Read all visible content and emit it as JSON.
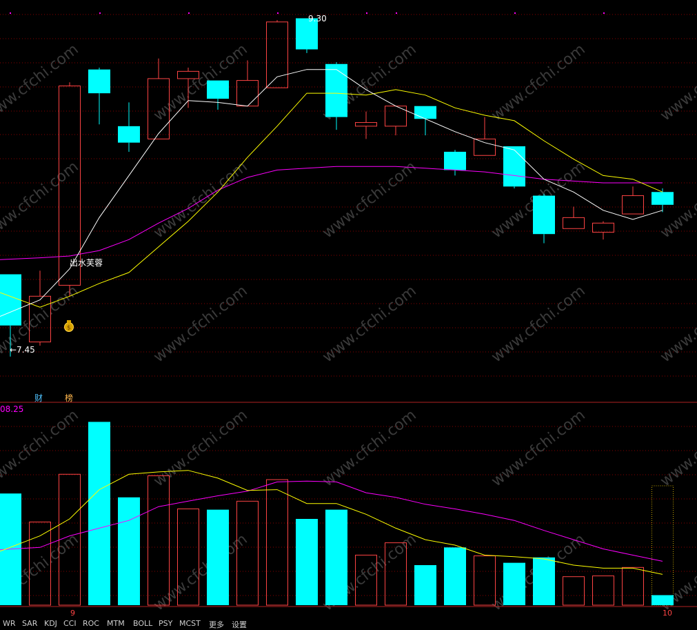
{
  "colors": {
    "up": "#ff4444",
    "down": "#00ffff",
    "ma_white": "#ffffff",
    "ma_yellow": "#ffff00",
    "ma_magenta": "#ff00ff",
    "grid": "#8b0000",
    "label_blue": "#4fc3ff",
    "label_orange": "#ffb74d"
  },
  "chart_data": [
    {
      "type": "candlestick",
      "panel": "price",
      "ylim": [
        7.2,
        9.4
      ],
      "candles": [
        {
          "o": 7.9,
          "h": 7.9,
          "l": 7.45,
          "c": 7.62
        },
        {
          "o": 7.53,
          "h": 7.92,
          "l": 7.51,
          "c": 7.78
        },
        {
          "o": 7.84,
          "h": 8.95,
          "l": 7.78,
          "c": 8.93
        },
        {
          "o": 9.02,
          "h": 9.03,
          "l": 8.72,
          "c": 8.89
        },
        {
          "o": 8.71,
          "h": 8.84,
          "l": 8.57,
          "c": 8.62
        },
        {
          "o": 8.64,
          "h": 9.08,
          "l": 8.64,
          "c": 8.97
        },
        {
          "o": 8.97,
          "h": 9.03,
          "l": 8.81,
          "c": 9.01
        },
        {
          "o": 8.96,
          "h": 8.96,
          "l": 8.8,
          "c": 8.86
        },
        {
          "o": 8.82,
          "h": 9.07,
          "l": 8.82,
          "c": 8.96
        },
        {
          "o": 8.92,
          "h": 9.29,
          "l": 8.92,
          "c": 9.28
        },
        {
          "o": 9.3,
          "h": 9.3,
          "l": 9.11,
          "c": 9.13
        },
        {
          "o": 9.05,
          "h": 9.06,
          "l": 8.69,
          "c": 8.76
        },
        {
          "o": 8.71,
          "h": 8.79,
          "l": 8.64,
          "c": 8.73
        },
        {
          "o": 8.71,
          "h": 8.82,
          "l": 8.66,
          "c": 8.82
        },
        {
          "o": 8.82,
          "h": 8.82,
          "l": 8.66,
          "c": 8.75
        },
        {
          "o": 8.57,
          "h": 8.58,
          "l": 8.44,
          "c": 8.47
        },
        {
          "o": 8.55,
          "h": 8.76,
          "l": 8.55,
          "c": 8.64
        },
        {
          "o": 8.6,
          "h": 8.6,
          "l": 8.37,
          "c": 8.38
        },
        {
          "o": 8.33,
          "h": 8.34,
          "l": 8.07,
          "c": 8.12
        },
        {
          "o": 8.15,
          "h": 8.27,
          "l": 8.15,
          "c": 8.21
        },
        {
          "o": 8.13,
          "h": 8.19,
          "l": 8.09,
          "c": 8.18
        },
        {
          "o": 8.23,
          "h": 8.38,
          "l": 8.23,
          "c": 8.33
        },
        {
          "o": 8.35,
          "h": 8.37,
          "l": 8.24,
          "c": 8.28
        }
      ],
      "ma_white": [
        7.67,
        7.76,
        7.93,
        8.21,
        8.44,
        8.67,
        8.85,
        8.84,
        8.82,
        8.98,
        9.02,
        9.02,
        8.91,
        8.82,
        8.75,
        8.68,
        8.62,
        8.58,
        8.42,
        8.35,
        8.25,
        8.2,
        8.25
      ],
      "ma_yellow": [
        7.8,
        7.72,
        7.78,
        7.85,
        7.91,
        8.05,
        8.19,
        8.35,
        8.54,
        8.71,
        8.89,
        8.89,
        8.88,
        8.91,
        8.88,
        8.81,
        8.77,
        8.74,
        8.63,
        8.53,
        8.44,
        8.42,
        8.35
      ],
      "ma_magenta": [
        7.98,
        7.99,
        8.0,
        8.03,
        8.09,
        8.18,
        8.26,
        8.36,
        8.43,
        8.47,
        8.48,
        8.49,
        8.49,
        8.49,
        8.48,
        8.47,
        8.46,
        8.44,
        8.42,
        8.41,
        8.4,
        8.4,
        8.4
      ],
      "annotations": {
        "high_label": "9.30",
        "low_label": "←7.45",
        "pattern_label": "出水芙蓉",
        "money_icon": "money-bag-icon"
      }
    },
    {
      "type": "bar",
      "panel": "volume",
      "ymax_label": "08.25",
      "bars": [
        {
          "v": 145,
          "up": false
        },
        {
          "v": 108,
          "up": true
        },
        {
          "v": 170,
          "up": true
        },
        {
          "v": 238,
          "up": false
        },
        {
          "v": 140,
          "up": false
        },
        {
          "v": 168,
          "up": true
        },
        {
          "v": 125,
          "up": true
        },
        {
          "v": 124,
          "up": false
        },
        {
          "v": 135,
          "up": true
        },
        {
          "v": 163,
          "up": true
        },
        {
          "v": 112,
          "up": false
        },
        {
          "v": 124,
          "up": false
        },
        {
          "v": 65,
          "up": true
        },
        {
          "v": 81,
          "up": true
        },
        {
          "v": 52,
          "up": false
        },
        {
          "v": 75,
          "up": false
        },
        {
          "v": 64,
          "up": true
        },
        {
          "v": 55,
          "up": false
        },
        {
          "v": 62,
          "up": false
        },
        {
          "v": 37,
          "up": true
        },
        {
          "v": 38,
          "up": true
        },
        {
          "v": 49,
          "up": true
        },
        {
          "v": 13,
          "up": false,
          "current": true
        }
      ],
      "ma_yellow": [
        70,
        90,
        112,
        150,
        170,
        173,
        175,
        165,
        149,
        150,
        132,
        132,
        118,
        100,
        85,
        78,
        65,
        63,
        60,
        52,
        48,
        48,
        40
      ],
      "ma_magenta": [
        72,
        75,
        90,
        100,
        110,
        128,
        135,
        142,
        148,
        160,
        161,
        160,
        146,
        140,
        131,
        125,
        118,
        110,
        97,
        85,
        73,
        65,
        57
      ]
    }
  ],
  "labels": {
    "cai": "财",
    "bang": "榜",
    "x_tick_9": "9",
    "x_tick_10": "10",
    "watermark": "www.cfchi.com"
  },
  "bottom_tabs": [
    "WR",
    "SAR",
    "KDJ",
    "CCI",
    "ROC",
    "MTM",
    "BOLL",
    "PSY",
    "MCST",
    "更多",
    "设置"
  ]
}
